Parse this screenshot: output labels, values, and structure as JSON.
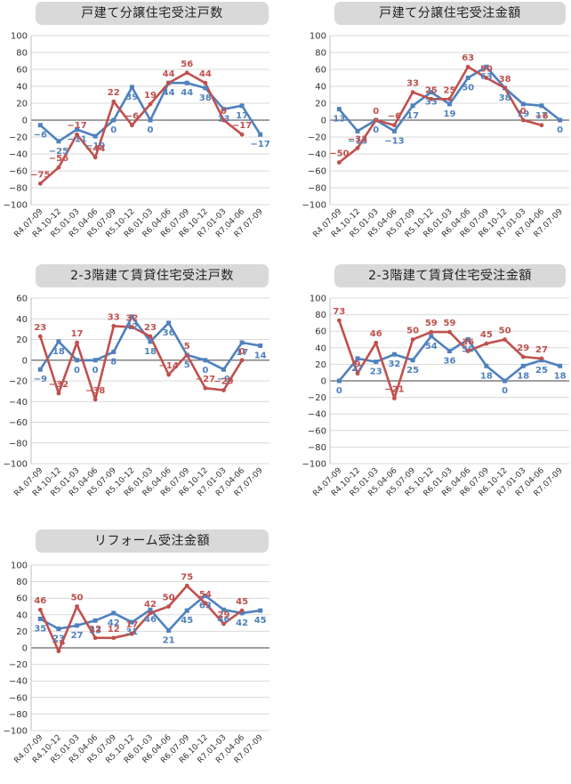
{
  "colors": {
    "blue": "#4f81bd",
    "red": "#c0504d",
    "grid": "#d9d9d9",
    "zero": "#666666"
  },
  "chart_data": [
    {
      "type": "line",
      "title": "戸建て分譲住宅受注戸数",
      "ylim": [
        -100,
        100
      ],
      "yticks": [
        -100,
        -80,
        -60,
        -40,
        -20,
        0,
        20,
        40,
        60,
        80,
        100
      ],
      "categories": [
        "R4.07-09",
        "R4.10-12",
        "R5.01-03",
        "R5.04-06",
        "R5.07-09",
        "R5.10-12",
        "R6.01-03",
        "R6.04-06",
        "R6.07-09",
        "R6.10-12",
        "R7.01-03",
        "R7.04-06",
        "R7.07-09"
      ],
      "series": [
        {
          "color": "blue",
          "values": [
            -6,
            -25,
            -11,
            -19,
            0,
            39,
            0,
            44,
            44,
            38,
            13,
            17,
            -17
          ]
        },
        {
          "color": "red",
          "values": [
            -75,
            -56,
            -17,
            -44,
            22,
            -6,
            19,
            44,
            56,
            44,
            0,
            -17,
            null
          ]
        }
      ]
    },
    {
      "type": "line",
      "title": "戸建て分譲住宅受注金額",
      "ylim": [
        -100,
        100
      ],
      "yticks": [
        -100,
        -80,
        -60,
        -40,
        -20,
        0,
        20,
        40,
        60,
        80,
        100
      ],
      "categories": [
        "R4.07-09",
        "R4.10-12",
        "R5.01-03",
        "R5.04-06",
        "R5.07-09",
        "R5.10-12",
        "R6.01-03",
        "R6.04-06",
        "R6.07-09",
        "R6.10-12",
        "R7.01-03",
        "R7.04-06",
        "R7.07-09"
      ],
      "series": [
        {
          "color": "blue",
          "values": [
            13,
            -13,
            0,
            -13,
            17,
            33,
            19,
            50,
            63,
            38,
            19,
            17,
            0
          ]
        },
        {
          "color": "red",
          "values": [
            -50,
            -33,
            0,
            -6,
            33,
            25,
            25,
            63,
            50,
            38,
            0,
            -6,
            null
          ]
        }
      ]
    },
    {
      "type": "line",
      "title": "2-3階建て賃貸住宅受注戸数",
      "ylim": [
        -100,
        60
      ],
      "yticks": [
        -100,
        -80,
        -60,
        -40,
        -20,
        0,
        20,
        40,
        60
      ],
      "categories": [
        "R4.07-09",
        "R4.10-12",
        "R5.01-03",
        "R5.04-06",
        "R5.07-09",
        "R5.10-12",
        "R6.01-03",
        "R6.04-06",
        "R6.07-09",
        "R6.10-12",
        "R7.01-03",
        "R7.04-06",
        "R7.07-09"
      ],
      "series": [
        {
          "color": "blue",
          "values": [
            -9,
            18,
            0,
            0,
            8,
            42,
            18,
            36,
            5,
            0,
            -9,
            17,
            14
          ]
        },
        {
          "color": "red",
          "values": [
            23,
            -32,
            17,
            -38,
            33,
            32,
            23,
            -14,
            5,
            -27,
            -29,
            0,
            null
          ]
        }
      ]
    },
    {
      "type": "line",
      "title": "2-3階建て賃貸住宅受注金額",
      "ylim": [
        -100,
        100
      ],
      "yticks": [
        -100,
        -80,
        -60,
        -40,
        -20,
        0,
        20,
        40,
        60,
        80,
        100
      ],
      "categories": [
        "R4.07-09",
        "R4.10-12",
        "R5.01-03",
        "R5.04-06",
        "R5.07-09",
        "R5.10-12",
        "R6.01-03",
        "R6.04-06",
        "R6.07-09",
        "R6.10-12",
        "R7.01-03",
        "R7.04-06",
        "R7.07-09"
      ],
      "series": [
        {
          "color": "blue",
          "values": [
            0,
            27,
            23,
            32,
            25,
            54,
            36,
            50,
            18,
            0,
            18,
            25,
            18
          ]
        },
        {
          "color": "red",
          "values": [
            73,
            9,
            46,
            -21,
            50,
            59,
            59,
            36,
            45,
            50,
            29,
            27,
            null
          ]
        }
      ]
    },
    {
      "type": "line",
      "title": "リフォーム受注金額",
      "ylim": [
        -100,
        100
      ],
      "yticks": [
        -100,
        -80,
        -60,
        -40,
        -20,
        0,
        20,
        40,
        60,
        80,
        100
      ],
      "categories": [
        "R4.07-09",
        "R4.10-12",
        "R5.01-03",
        "R5.04-06",
        "R5.07-09",
        "R5.10-12",
        "R6.01-03",
        "R6.04-06",
        "R6.07-09",
        "R6.10-12",
        "R7.01-03",
        "R7.04-06",
        "R7.07-09"
      ],
      "series": [
        {
          "color": "blue",
          "values": [
            35,
            23,
            27,
            33,
            42,
            31,
            46,
            21,
            45,
            63,
            46,
            42,
            45
          ]
        },
        {
          "color": "red",
          "values": [
            46,
            -4,
            50,
            12,
            12,
            17,
            42,
            50,
            75,
            54,
            29,
            45,
            null
          ]
        }
      ]
    }
  ]
}
